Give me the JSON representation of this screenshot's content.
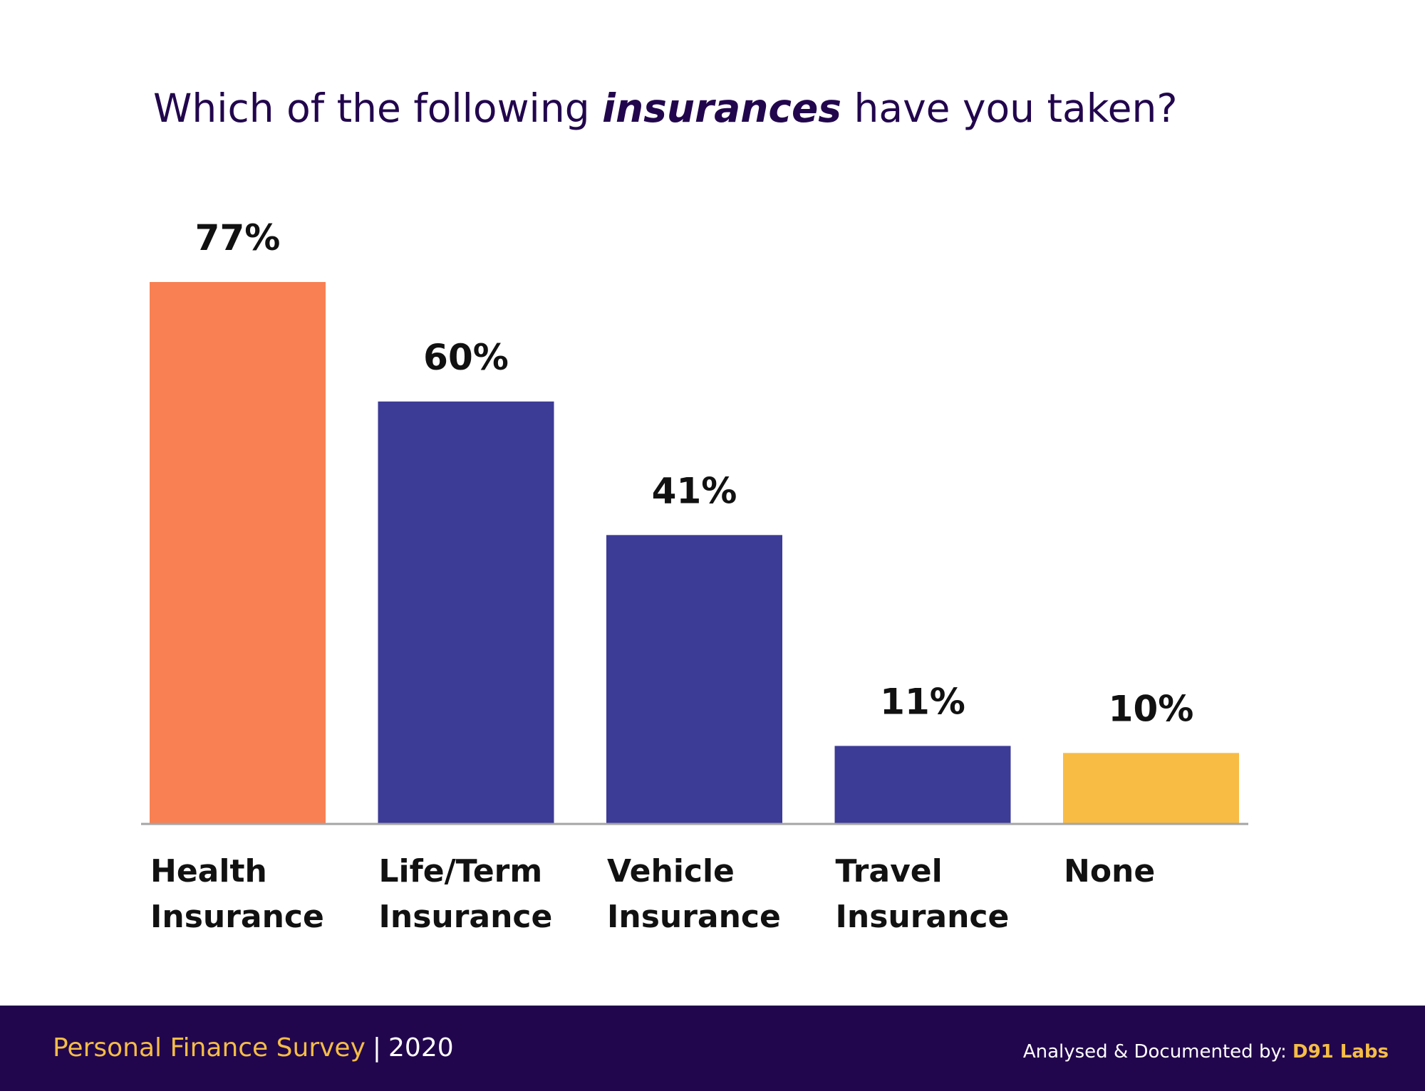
{
  "title": {
    "prefix": "Which of the following ",
    "emphasis": "insurances",
    "suffix": " have you taken?"
  },
  "chart_data": {
    "type": "bar",
    "title": "Which of the following insurances have you taken?",
    "categories": [
      [
        "Health",
        "Insurance"
      ],
      [
        "Life/Term",
        "Insurance"
      ],
      [
        "Vehicle",
        "Insurance"
      ],
      [
        "Travel",
        "Insurance"
      ],
      [
        "None"
      ]
    ],
    "values": [
      77,
      60,
      41,
      11,
      10
    ],
    "value_labels": [
      "77%",
      "60%",
      "41%",
      "11%",
      "10%"
    ],
    "unit": "%",
    "colors": [
      "#f98052",
      "#3c3b96",
      "#3c3b96",
      "#3c3b96",
      "#f8bc45"
    ],
    "ylim": [
      0,
      100
    ],
    "grid": false,
    "legend": "none",
    "baseline_color": "#a5a5a5"
  },
  "footer": {
    "survey_name": "Personal Finance Survey",
    "separator": "|",
    "year": "2020",
    "credit_prefix": "Analysed & Documented by: ",
    "brand": "D91 Labs"
  }
}
